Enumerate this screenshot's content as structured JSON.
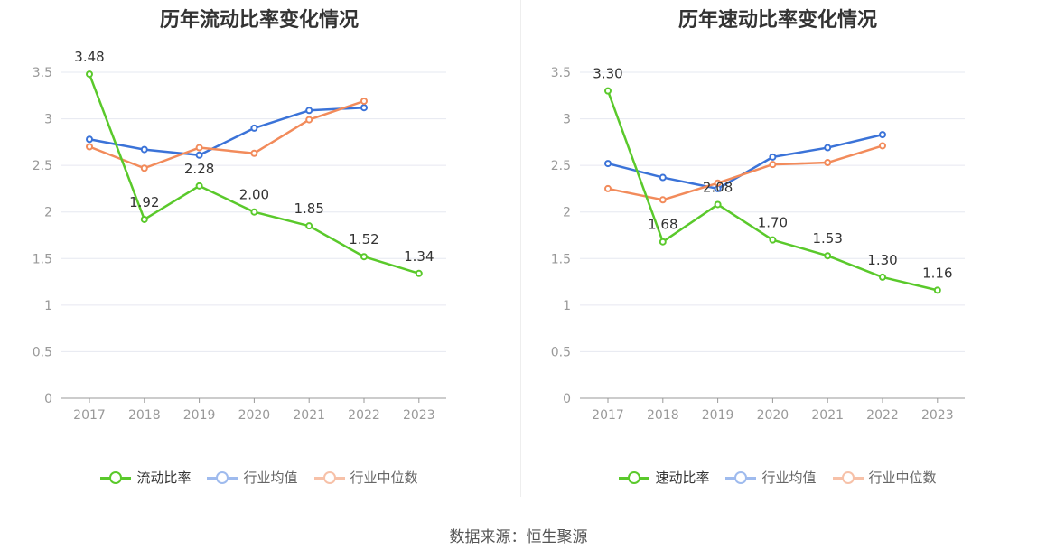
{
  "colors": {
    "primary": "#5ac92b",
    "avg": "#3b73d8",
    "median": "#f28b5b",
    "axis": "#999999",
    "grid": "#e6e8f0",
    "label": "#333333"
  },
  "source_text": "数据来源：恒生聚源",
  "chart_data": [
    {
      "type": "line",
      "title": "历年流动比率变化情况",
      "categories": [
        "2017",
        "2018",
        "2019",
        "2020",
        "2021",
        "2022",
        "2023"
      ],
      "ylim": [
        0,
        3.5
      ],
      "yticks": [
        "0",
        "0.5",
        "1",
        "1.5",
        "2",
        "2.5",
        "3",
        "3.5"
      ],
      "series": [
        {
          "name": "流动比率",
          "color": "primary",
          "labeled": true,
          "values": [
            3.48,
            1.92,
            2.28,
            2.0,
            1.85,
            1.52,
            1.34
          ],
          "labels": [
            "3.48",
            "1.92",
            "2.28",
            "2.00",
            "1.85",
            "1.52",
            "1.34"
          ]
        },
        {
          "name": "行业均值",
          "color": "avg",
          "labeled": false,
          "values": [
            2.78,
            2.67,
            2.61,
            2.9,
            3.09,
            3.12,
            null
          ]
        },
        {
          "name": "行业中位数",
          "color": "median",
          "labeled": false,
          "values": [
            2.7,
            2.47,
            2.69,
            2.63,
            2.99,
            3.19,
            null
          ]
        }
      ],
      "legend": "bottom-center"
    },
    {
      "type": "line",
      "title": "历年速动比率变化情况",
      "categories": [
        "2017",
        "2018",
        "2019",
        "2020",
        "2021",
        "2022",
        "2023"
      ],
      "ylim": [
        0,
        3.5
      ],
      "yticks": [
        "0",
        "0.5",
        "1",
        "1.5",
        "2",
        "2.5",
        "3",
        "3.5"
      ],
      "series": [
        {
          "name": "速动比率",
          "color": "primary",
          "labeled": true,
          "values": [
            3.3,
            1.68,
            2.08,
            1.7,
            1.53,
            1.3,
            1.16
          ],
          "labels": [
            "3.30",
            "1.68",
            "2.08",
            "1.70",
            "1.53",
            "1.30",
            "1.16"
          ]
        },
        {
          "name": "行业均值",
          "color": "avg",
          "labeled": false,
          "values": [
            2.52,
            2.37,
            2.25,
            2.59,
            2.69,
            2.83,
            null
          ]
        },
        {
          "name": "行业中位数",
          "color": "median",
          "labeled": false,
          "values": [
            2.25,
            2.13,
            2.31,
            2.51,
            2.53,
            2.71,
            null
          ]
        }
      ],
      "legend": "bottom-center"
    }
  ]
}
